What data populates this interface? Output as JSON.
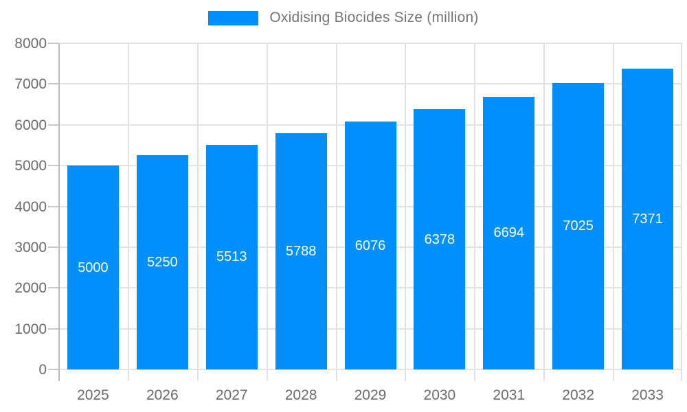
{
  "legend": {
    "label": "Oxidising Biocides Size (million)"
  },
  "chart_data": {
    "type": "bar",
    "title": "Oxidising Biocides Size (million)",
    "categories": [
      "2025",
      "2026",
      "2027",
      "2028",
      "2029",
      "2030",
      "2031",
      "2032",
      "2033"
    ],
    "series": [
      {
        "name": "Oxidising Biocides Size (million)",
        "values": [
          5000,
          5250,
          5513,
          5788,
          6076,
          6378,
          6694,
          7025,
          7371
        ]
      }
    ],
    "data_labels_shown": true,
    "xlabel": "",
    "ylabel": "",
    "ylim": [
      0,
      8000
    ],
    "ytick_interval": 1000,
    "yticks": [
      0,
      1000,
      2000,
      3000,
      4000,
      5000,
      6000,
      7000,
      8000
    ],
    "grid": true,
    "legend_position": "top",
    "colors": {
      "bar": "#008FFB",
      "grid_line": "#e2e2e2",
      "axis_line": "#bdbdbd",
      "tick_line": "#c9c9c9",
      "axis_label_text": "#6b6b6b",
      "legend_text": "#757575",
      "bar_label_text": "#ffffff"
    }
  }
}
